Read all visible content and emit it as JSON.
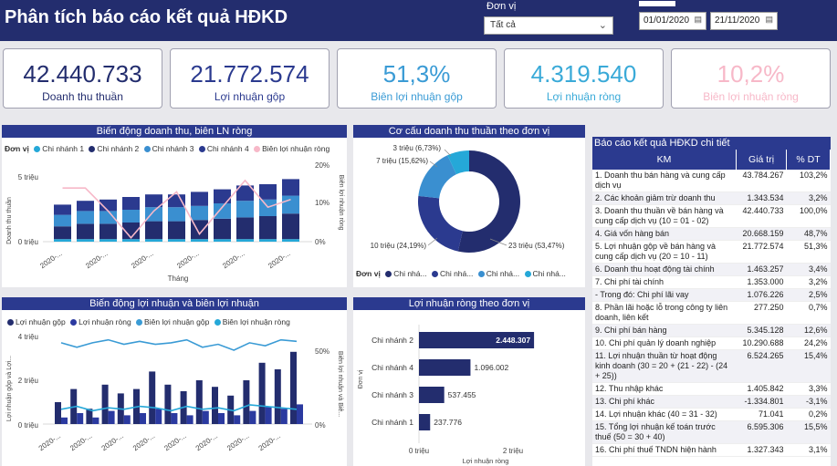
{
  "header": {
    "title": "Phân tích báo cáo kết quả HĐKD",
    "unit_label": "Đơn vị",
    "unit_value": "Tất cả",
    "date_from": "01/01/2020",
    "date_to": "21/11/2020"
  },
  "kpis": [
    {
      "value": "42.440.733",
      "label": "Doanh thu thuần",
      "color": "#232d6e"
    },
    {
      "value": "21.772.574",
      "label": "Lợi nhuận gộp",
      "color": "#2b3a8f"
    },
    {
      "value": "51,3%",
      "label": "Biên lợi nhuận gộp",
      "color": "#3a9bd5"
    },
    {
      "value": "4.319.540",
      "label": "Lợi nhuận ròng",
      "color": "#3aaad8"
    },
    {
      "value": "10,2%",
      "label": "Biên lợi nhuận ròng",
      "color": "#f7b8c8"
    }
  ],
  "panels": {
    "revenue_title": "Biến động doanh thu, biên LN ròng",
    "donut_title": "Cơ cấu doanh thu thuần theo đơn vị",
    "table_title": "Báo cáo kết quả HĐKD chi tiết",
    "profit_title": "Biến động lợi nhuận và biên lợi nhuận",
    "netbar_title": "Lợi nhuận ròng theo đơn vị"
  },
  "colors": {
    "cn1": "#25a8d8",
    "cn2": "#232d6e",
    "cn3": "#3a8fd0",
    "cn4": "#2b3a8f",
    "pink": "#f7b8c8",
    "gross": "#232d6e",
    "net": "#2b3aa0",
    "gross_margin": "#3a9bd5",
    "net_margin": "#25a8d8"
  },
  "chart_data": [
    {
      "type": "bar",
      "id": "revenue",
      "legend_title": "Đơn vị",
      "series_names": [
        "Chi nhánh 1",
        "Chi nhánh 2",
        "Chi nhánh 3",
        "Chi nhánh 4",
        "Biên lợi nhuận ròng"
      ],
      "categories": [
        "2020-...",
        "2020-...",
        "2020-...",
        "2020-...",
        "2020-...",
        "2020-...",
        "2020-...",
        "2020-...",
        "2020-...",
        "2020-...",
        "2020-..."
      ],
      "xlabel": "Tháng",
      "ylabel": "Doanh thu thuần",
      "y2label": "Biên lợi nhuận ròng",
      "yticks": [
        "5 triệu",
        "0 triệu"
      ],
      "y2ticks": [
        "20%",
        "10%",
        "0%"
      ],
      "stack": [
        [
          0.2,
          1.0,
          0.9,
          0.8
        ],
        [
          0.2,
          1.2,
          1.0,
          0.8
        ],
        [
          0.2,
          1.2,
          1.0,
          0.9
        ],
        [
          0.2,
          1.3,
          1.0,
          1.0
        ],
        [
          0.2,
          1.4,
          1.1,
          1.0
        ],
        [
          0.2,
          1.4,
          1.1,
          1.0
        ],
        [
          0.2,
          1.5,
          1.1,
          1.1
        ],
        [
          0.2,
          1.6,
          1.2,
          1.1
        ],
        [
          0.2,
          1.7,
          1.3,
          1.2
        ],
        [
          0.2,
          1.8,
          1.3,
          1.2
        ],
        [
          0.2,
          2.0,
          1.4,
          1.3
        ]
      ],
      "line": [
        14,
        14,
        8,
        1,
        8,
        13,
        2,
        9,
        16,
        9,
        11
      ]
    },
    {
      "type": "pie",
      "id": "donut",
      "legend_title": "Đơn vị",
      "legend": [
        "Chi nhá...",
        "Chi nhá...",
        "Chi nhá...",
        "Chi nhá..."
      ],
      "slices": [
        {
          "value": 23,
          "label": "23 triệu (53,47%)",
          "color": "#232d6e"
        },
        {
          "value": 10,
          "label": "10 triệu (24,19%)",
          "color": "#2b3a8f"
        },
        {
          "value": 7,
          "label": "7 triệu (15,62%)",
          "color": "#3a8fd0"
        },
        {
          "value": 3,
          "label": "3 triệu (6,73%)",
          "color": "#25a8d8"
        }
      ]
    },
    {
      "type": "bar",
      "id": "profit",
      "series_names": [
        "Lợi nhuận gộp",
        "Lợi nhuận ròng",
        "Biên lợi nhuận gộp",
        "Biên lợi nhuận ròng"
      ],
      "categories": [
        "2020-...",
        "2020-...",
        "2020-...",
        "2020-...",
        "2020-...",
        "2020-...",
        "2020-...",
        "2020-..."
      ],
      "xlabel": "Tháng",
      "ylabel": "Lợi nhuận gộp và Lợi...",
      "y2label": "Biên lợi nhuận và Biê...",
      "yticks": [
        "4 triệu",
        "2 triệu",
        "0 triệu"
      ],
      "y2ticks": [
        "50%",
        "0%"
      ],
      "gross": [
        1.0,
        1.6,
        0.7,
        1.8,
        1.4,
        1.6,
        2.4,
        1.8,
        1.5,
        2.0,
        1.7,
        1.3,
        2.0,
        2.8,
        2.5,
        3.3
      ],
      "net": [
        0.3,
        0.5,
        0.3,
        0.6,
        0.4,
        0.5,
        0.7,
        0.5,
        0.4,
        0.6,
        0.5,
        0.4,
        0.6,
        0.8,
        0.7,
        0.9
      ],
      "gross_margin": [
        55,
        52,
        55,
        57,
        54,
        56,
        54,
        55,
        57,
        52,
        54,
        50,
        55,
        53,
        57,
        56
      ],
      "net_margin": [
        10,
        12,
        9,
        11,
        10,
        12,
        11,
        9,
        12,
        10,
        11,
        9,
        13,
        12,
        11,
        10
      ]
    },
    {
      "type": "bar",
      "id": "netbar",
      "orientation": "horizontal",
      "categories": [
        "Chi nhánh 2",
        "Chi nhánh 4",
        "Chi nhánh 3",
        "Chi nhánh 1"
      ],
      "values": [
        2448307,
        1096002,
        537455,
        237776
      ],
      "labels": [
        "2.448.307",
        "1.096.002",
        "537.455",
        "237.776"
      ],
      "xticks": [
        "0 triệu",
        "2 triệu"
      ],
      "xlabel": "Lợi nhuận ròng",
      "ylabel": "Đơn vị"
    }
  ],
  "table": {
    "headers": [
      "KM",
      "Giá trị",
      "% DT"
    ],
    "rows": [
      [
        "1. Doanh thu bán hàng và cung cấp dịch vụ",
        "43.784.267",
        "103,2%"
      ],
      [
        "2. Các khoản giảm trừ doanh thu",
        "1.343.534",
        "3,2%"
      ],
      [
        "3. Doanh thu thuần về bán hàng và cung cấp dịch vụ (10 = 01 - 02)",
        "42.440.733",
        "100,0%"
      ],
      [
        "4. Giá vốn hàng bán",
        "20.668.159",
        "48,7%"
      ],
      [
        "5. Lợi nhuận gộp về bán hàng và cung cấp dịch vụ (20 = 10 - 11)",
        "21.772.574",
        "51,3%"
      ],
      [
        "6. Doanh thu hoạt động tài chính",
        "1.463.257",
        "3,4%"
      ],
      [
        "7. Chi phí tài chính",
        "1.353.000",
        "3,2%"
      ],
      [
        "- Trong đó: Chi phí lãi vay",
        "1.076.226",
        "2,5%"
      ],
      [
        "8. Phần lãi hoặc lỗ trong công ty liên doanh, liên kết",
        "277.250",
        "0,7%"
      ],
      [
        "9. Chi phí bán hàng",
        "5.345.128",
        "12,6%"
      ],
      [
        "10. Chi phí quản lý doanh nghiệp",
        "10.290.688",
        "24,2%"
      ],
      [
        "11. Lợi nhuận thuần từ hoạt động kinh doanh (30 = 20 + (21 - 22) - (24 + 25))",
        "6.524.265",
        "15,4%"
      ],
      [
        "12. Thu nhập khác",
        "1.405.842",
        "3,3%"
      ],
      [
        "13. Chi phí khác",
        "-1.334.801",
        "-3,1%"
      ],
      [
        "14. Lợi nhuận khác (40 = 31 - 32)",
        "71.041",
        "0,2%"
      ],
      [
        "15. Tổng lợi nhuận kế toán trước thuế (50 = 30 + 40)",
        "6.595.306",
        "15,5%"
      ],
      [
        "16. Chi phí thuế TNDN hiện hành",
        "1.327.343",
        "3,1%"
      ]
    ]
  }
}
